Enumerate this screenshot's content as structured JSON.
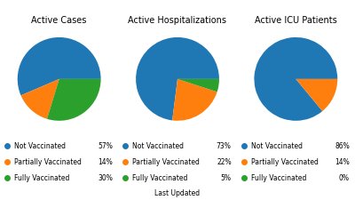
{
  "chart_data": [
    {
      "type": "pie",
      "title": "Active Cases",
      "categories": [
        "Not Vaccinated",
        "Partially Vaccinated",
        "Fully Vaccinated"
      ],
      "values": [
        57,
        14,
        30
      ],
      "value_labels": [
        "57%",
        "14%",
        "30%"
      ]
    },
    {
      "type": "pie",
      "title": "Active Hospitalizations",
      "categories": [
        "Not Vaccinated",
        "Partially Vaccinated",
        "Fully Vaccinated"
      ],
      "values": [
        73,
        22,
        5
      ],
      "value_labels": [
        "73%",
        "22%",
        "5%"
      ]
    },
    {
      "type": "pie",
      "title": "Active ICU Patients",
      "categories": [
        "Not Vaccinated",
        "Partially Vaccinated",
        "Fully Vaccinated"
      ],
      "values": [
        86,
        14,
        0
      ],
      "value_labels": [
        "86%",
        "14%",
        "0%"
      ]
    }
  ],
  "annotation": "Last Updated"
}
